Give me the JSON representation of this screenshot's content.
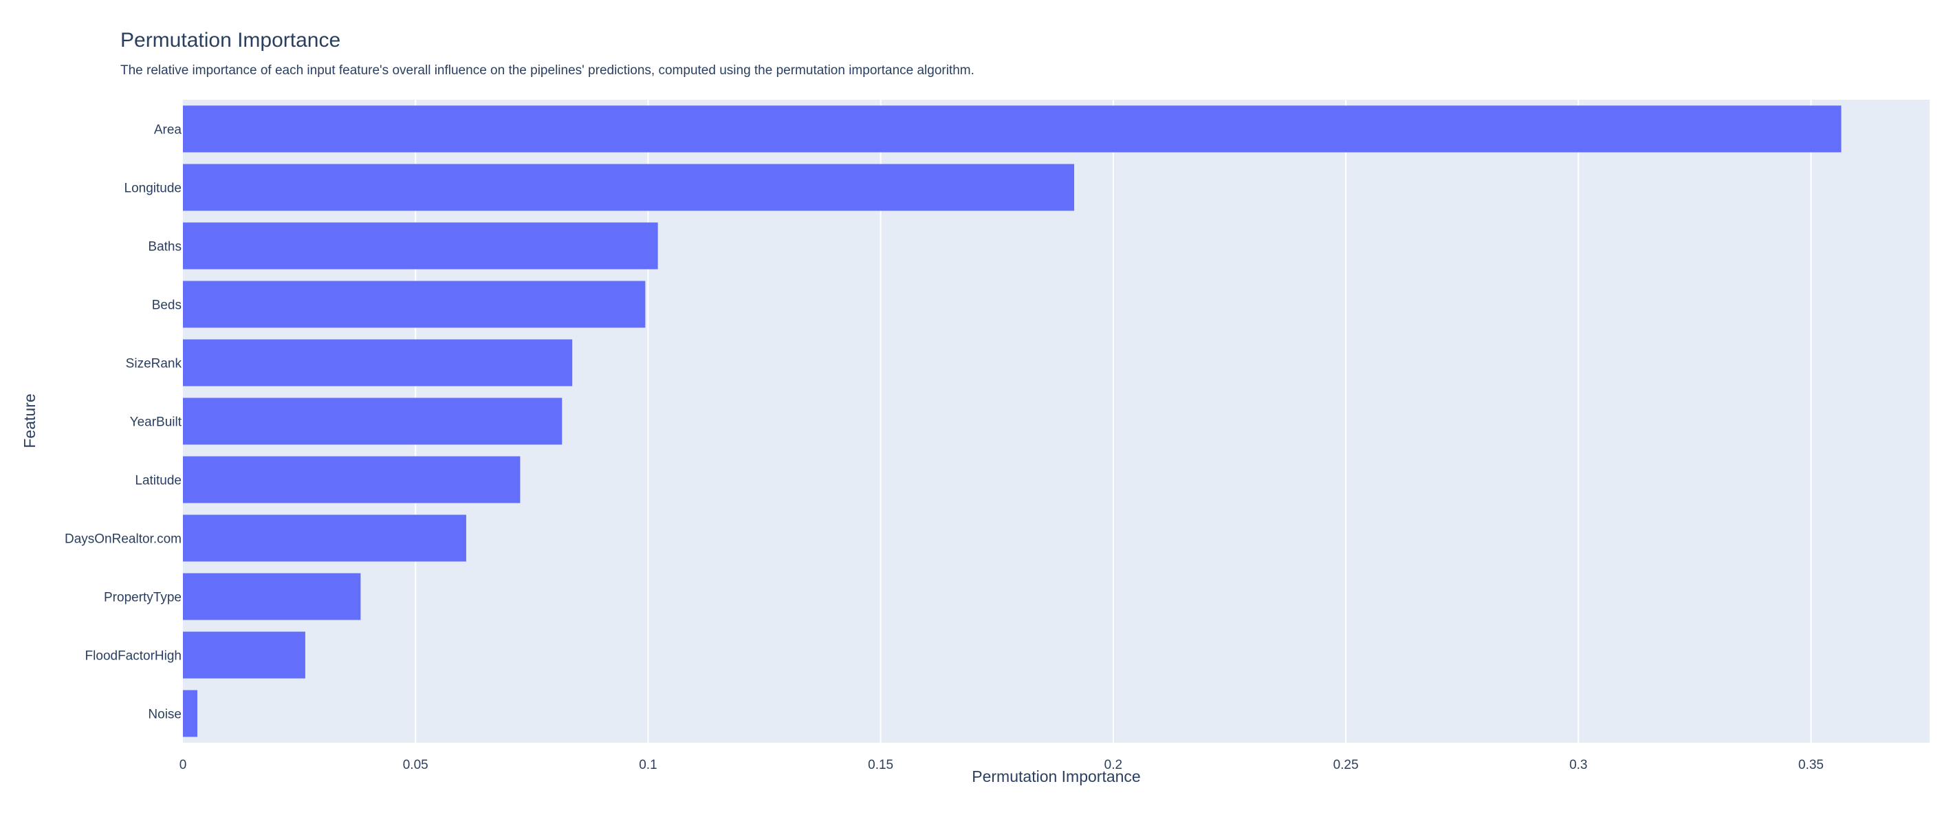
{
  "chart_data": {
    "type": "bar",
    "orientation": "horizontal",
    "title": "Permutation Importance",
    "subtitle": "The relative importance of each input feature's overall influence on the pipelines' predictions, computed using the permutation importance algorithm.",
    "xlabel": "Permutation Importance",
    "ylabel": "Feature",
    "categories": [
      "Area",
      "Longitude",
      "Baths",
      "Beds",
      "SizeRank",
      "YearBuilt",
      "Latitude",
      "DaysOnRealtor.com",
      "PropertyType",
      "FloodFactorHigh",
      "Noise"
    ],
    "values": [
      0.3565,
      0.1916,
      0.1021,
      0.0994,
      0.0837,
      0.0815,
      0.0725,
      0.0609,
      0.0382,
      0.0263,
      0.0031
    ],
    "xlim": [
      0,
      0.3755
    ],
    "xticks": [
      0,
      0.05,
      0.1,
      0.15,
      0.2,
      0.25,
      0.3,
      0.35
    ],
    "xtick_labels": [
      "0",
      "0.05",
      "0.1",
      "0.15",
      "0.2",
      "0.25",
      "0.3",
      "0.35"
    ],
    "grid": true,
    "colors": {
      "bar": "#636efa",
      "plot_background": "#e5ecf6",
      "gridline": "#ffffff",
      "text": "#2a3f5f"
    }
  }
}
